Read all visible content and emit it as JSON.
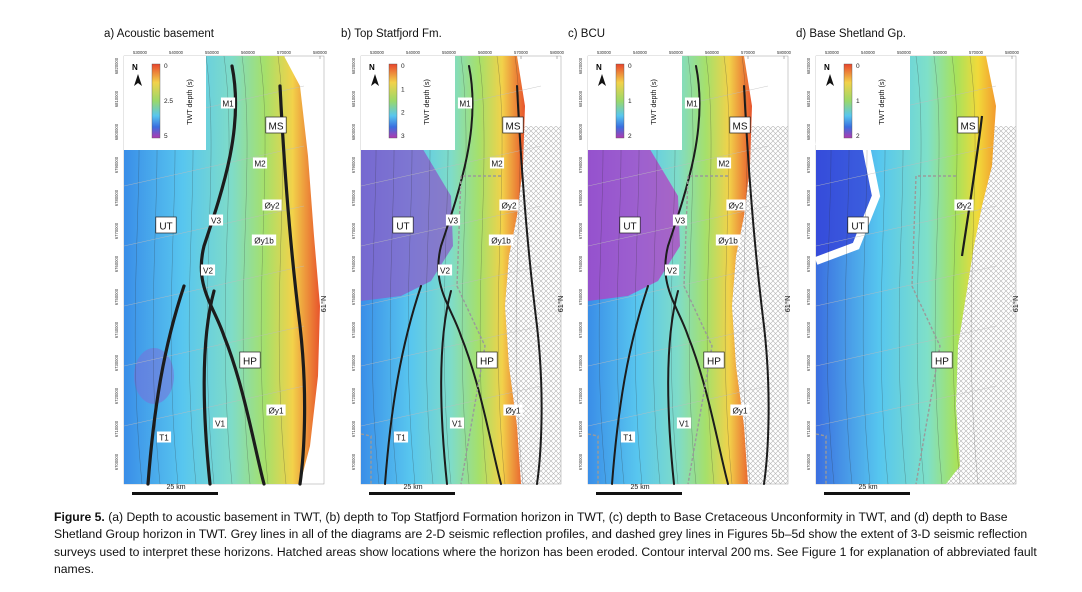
{
  "figure": {
    "number": "Figure 5.",
    "caption": "(a) Depth to acoustic basement in TWT, (b) depth to Top Statfjord Formation horizon in TWT, (c) depth to Base Cretaceous Unconformity in TWT, and (d) depth to Base Shetland Group horizon in TWT. Grey lines in all of the diagrams are 2-D seismic reflection profiles, and dashed grey lines in Figures 5b–5d show the extent of 3-D seismic reflection surveys used to interpret these horizons. Hatched areas show locations where the horizon has been eroded. Contour interval 200 ms. See Figure 1 for explanation of abbreviated fault names."
  },
  "common": {
    "x_ticks": [
      "530000",
      "540000",
      "550000",
      "560000",
      "570000",
      "580000"
    ],
    "y_ticks": [
      "6820000",
      "6810000",
      "6800000",
      "6790000",
      "6780000",
      "6770000",
      "6760000",
      "6750000",
      "6740000",
      "6730000",
      "6720000",
      "6710000",
      "6700000"
    ],
    "north": "N",
    "latitude": "61°N",
    "scale": "25 km",
    "legend_title": "TWT depth (s)",
    "colors": {
      "shallow": "#e8452c",
      "mid": "#9ad86a",
      "deep": "#b03ab0",
      "fault": "#222222",
      "hatch": "#c8c8c8"
    }
  },
  "panels": [
    {
      "title": "a) Acoustic basement",
      "legend_ticks": [
        "0",
        "2.5",
        "5"
      ],
      "labels": {
        "M1": "M1",
        "MS": "MS",
        "M2": "M2",
        "UT": "UT",
        "V3": "V3",
        "Oy2": "Øy2",
        "Oy1b": "Øy1b",
        "V2": "V2",
        "HP": "HP",
        "Oy1": "Øy1",
        "T1": "T1",
        "V1": "V1"
      }
    },
    {
      "title": "b) Top Statfjord Fm.",
      "legend_ticks": [
        "0",
        "1",
        "2",
        "3"
      ],
      "labels": {
        "M1": "M1",
        "MS": "MS",
        "M2": "M2",
        "UT": "UT",
        "V3": "V3",
        "Oy2": "Øy2",
        "Oy1b": "Øy1b",
        "V2": "V2",
        "HP": "HP",
        "Oy1": "Øy1",
        "T1": "T1",
        "V1": "V1"
      }
    },
    {
      "title": "c) BCU",
      "legend_ticks": [
        "0",
        "1",
        "2"
      ],
      "labels": {
        "M1": "M1",
        "MS": "MS",
        "M2": "M2",
        "UT": "UT",
        "V3": "V3",
        "Oy2": "Øy2",
        "Oy1b": "Øy1b",
        "V2": "V2",
        "HP": "HP",
        "Oy1": "Øy1",
        "T1": "T1",
        "V1": "V1"
      }
    },
    {
      "title": "d) Base Shetland Gp.",
      "legend_ticks": [
        "0",
        "1",
        "2"
      ],
      "labels": {
        "MS": "MS",
        "UT": "UT",
        "Oy2": "Øy2",
        "HP": "HP"
      }
    }
  ]
}
